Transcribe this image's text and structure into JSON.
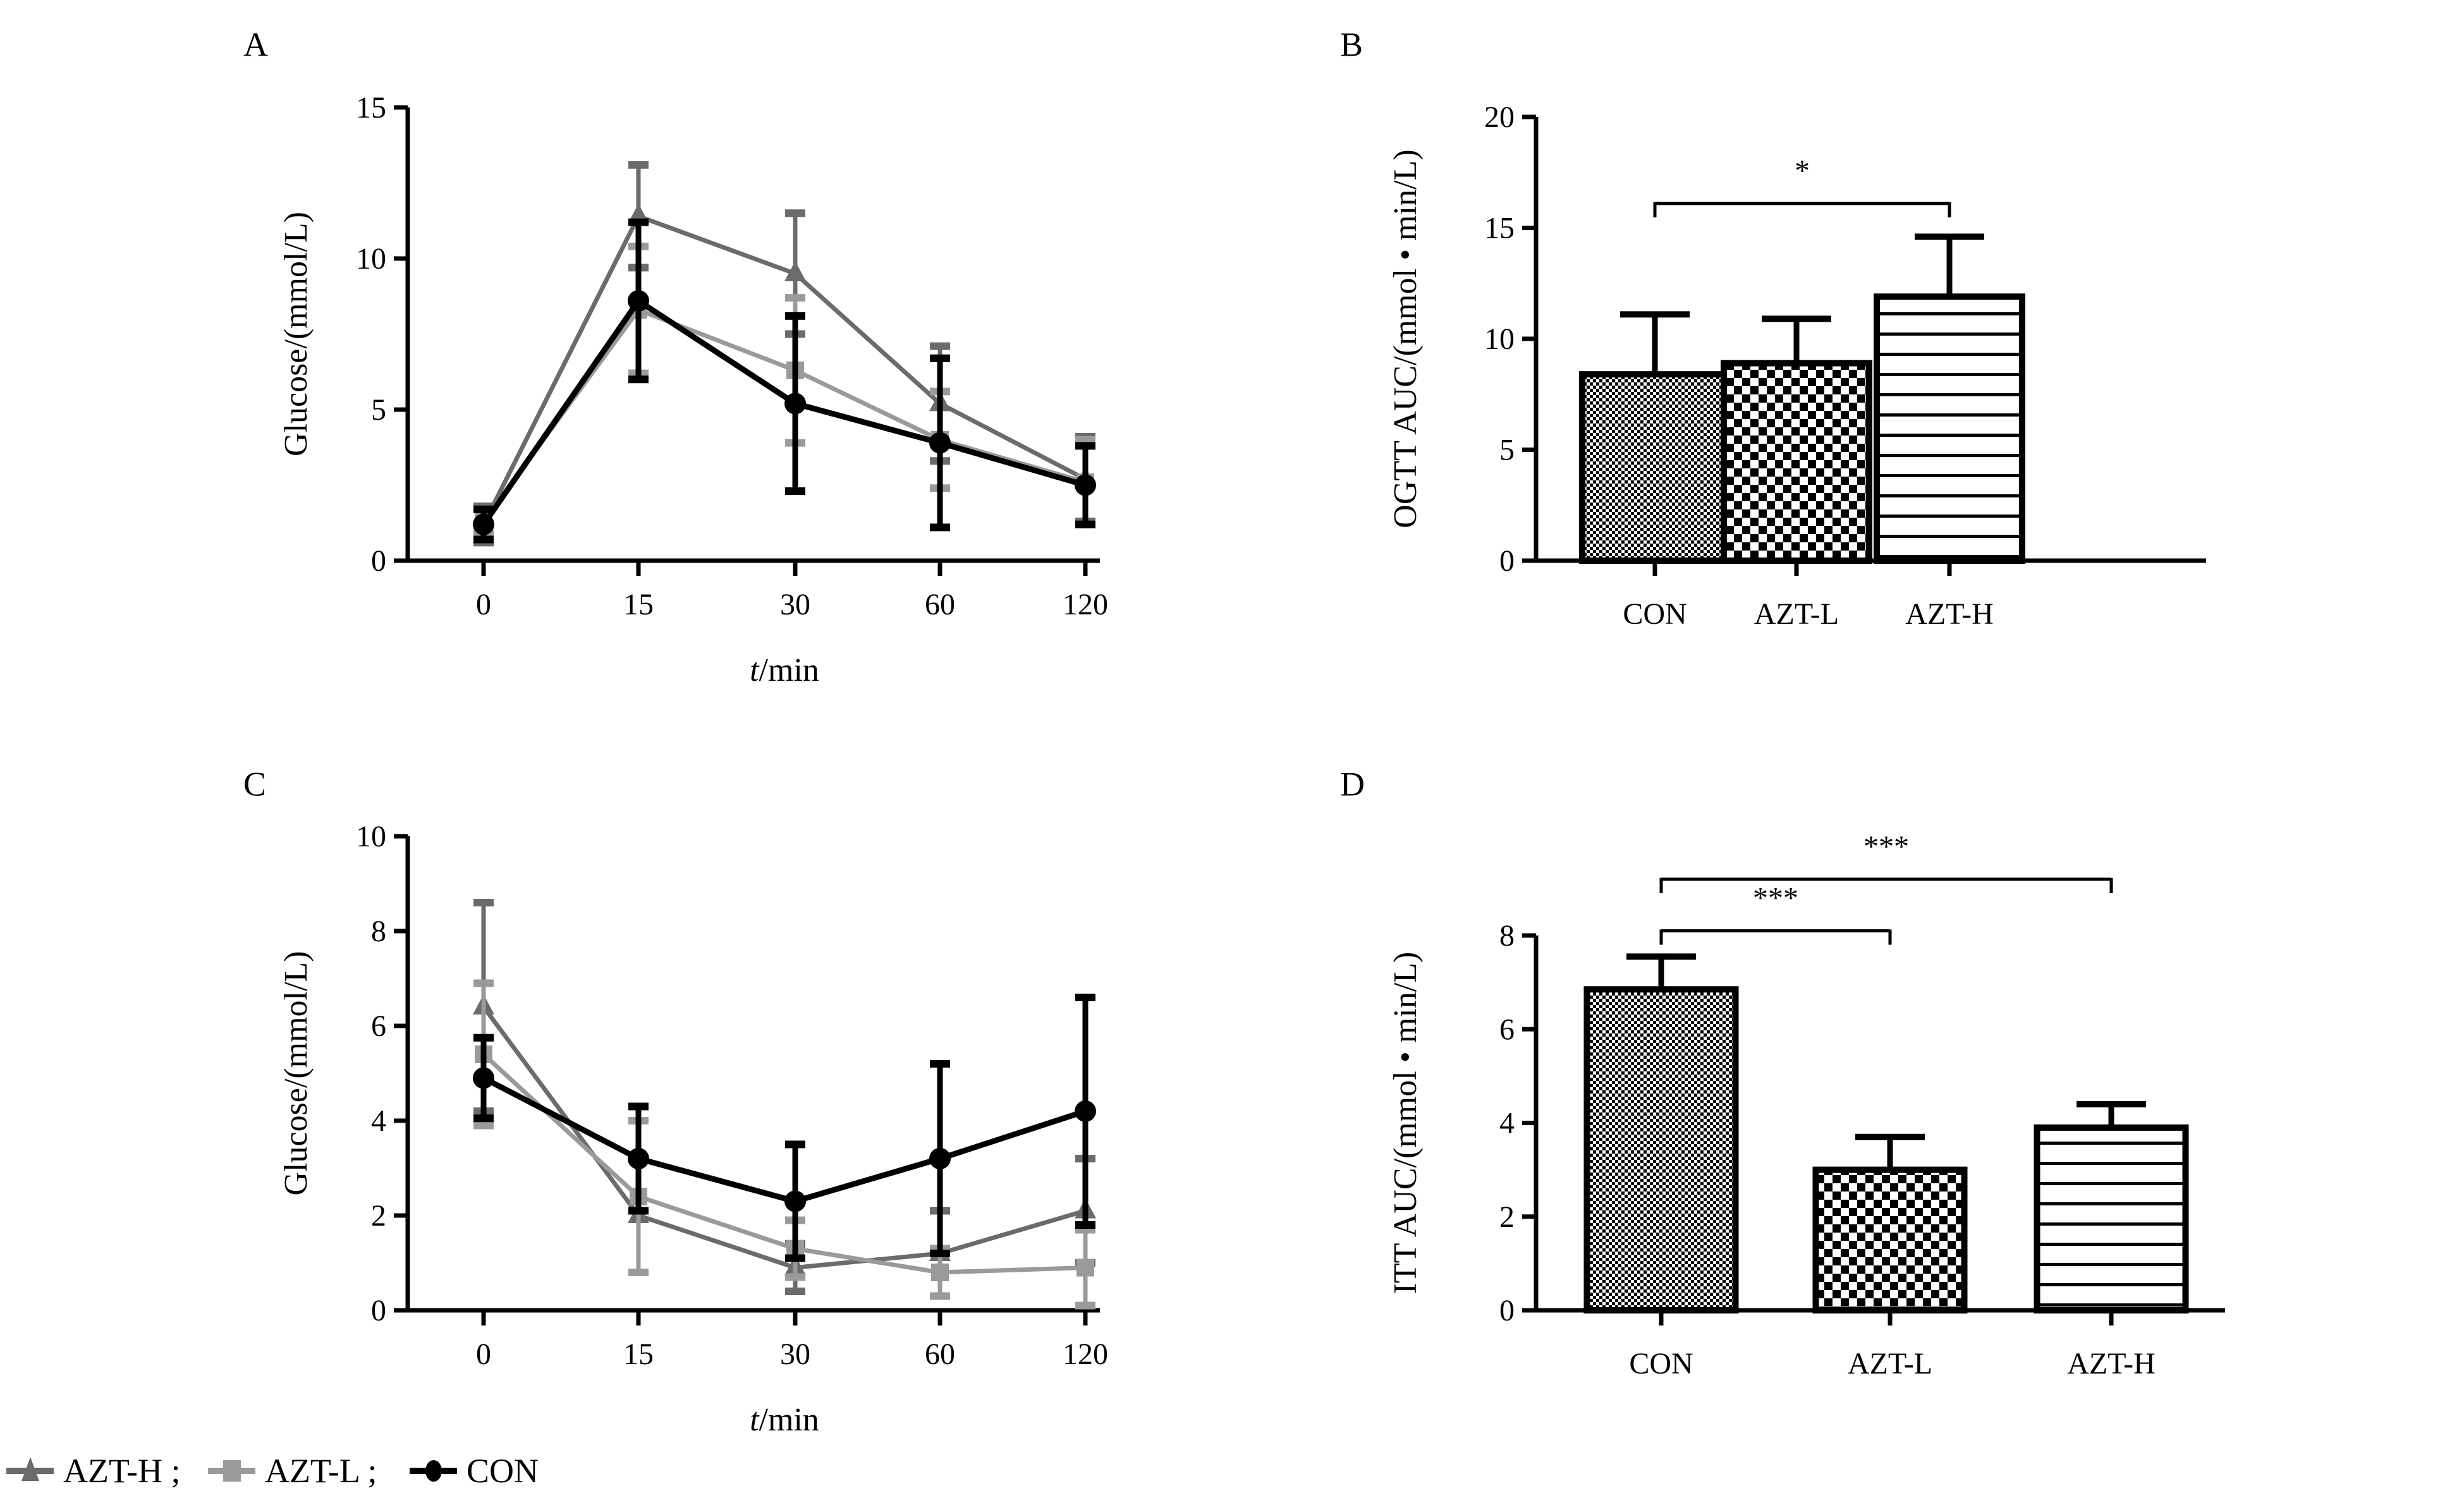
{
  "legend": {
    "items": [
      {
        "label": "AZT-H ;",
        "marker": "triangle",
        "color": "#6b6b6b"
      },
      {
        "label": "AZT-L ;",
        "marker": "square",
        "color": "#9a9a9a"
      },
      {
        "label": "CON",
        "marker": "circle",
        "color": "#000000"
      }
    ]
  },
  "chart_data": [
    {
      "panel": "A",
      "type": "line",
      "title": "",
      "xlabel_italic": "t",
      "xlabel_rest": "/min",
      "ylabel": "Glucose/(mmol/L)",
      "categories": [
        "0",
        "15",
        "30",
        "60",
        "120"
      ],
      "ylim": [
        0,
        15
      ],
      "yticks": [
        0,
        5,
        10,
        15
      ],
      "grid": false,
      "series": [
        {
          "name": "AZT-H",
          "marker": "triangle",
          "color": "#6b6b6b",
          "values": [
            1.2,
            11.4,
            9.5,
            5.2,
            2.7
          ],
          "errors": [
            0.6,
            1.7,
            2.0,
            1.9,
            1.4
          ]
        },
        {
          "name": "AZT-L",
          "marker": "square",
          "color": "#9a9a9a",
          "values": [
            1.3,
            8.3,
            6.3,
            4.0,
            2.6
          ],
          "errors": [
            0.4,
            2.1,
            2.4,
            1.6,
            1.4
          ]
        },
        {
          "name": "CON",
          "marker": "circle",
          "color": "#000000",
          "values": [
            1.2,
            8.6,
            5.2,
            3.9,
            2.5
          ],
          "errors": [
            0.5,
            2.6,
            2.9,
            2.8,
            1.3
          ]
        }
      ]
    },
    {
      "panel": "B",
      "type": "bar",
      "title": "",
      "xlabel": "",
      "ylabel": "OGTT AUC/(mmol • min/L)",
      "categories": [
        "CON",
        "AZT-L",
        "AZT-H"
      ],
      "values": [
        8.4,
        8.9,
        11.9
      ],
      "errors": [
        2.7,
        2.0,
        2.7
      ],
      "patterns": [
        "fine-check",
        "coarse-check",
        "horizontal-lines"
      ],
      "ylim": [
        0,
        20
      ],
      "yticks": [
        0,
        5,
        10,
        15,
        20
      ],
      "grid": false,
      "significance": [
        {
          "from": 0,
          "to": 2,
          "label": "*",
          "y": 16.1
        }
      ]
    },
    {
      "panel": "C",
      "type": "line",
      "title": "",
      "xlabel_italic": "t",
      "xlabel_rest": "/min",
      "ylabel": "Glucose/(mmol/L)",
      "categories": [
        "0",
        "15",
        "30",
        "60",
        "120"
      ],
      "ylim": [
        0,
        10
      ],
      "yticks": [
        0,
        2,
        4,
        6,
        8,
        10
      ],
      "grid": false,
      "series": [
        {
          "name": "AZT-H",
          "marker": "triangle",
          "color": "#6b6b6b",
          "values": [
            6.4,
            2.0,
            0.9,
            1.2,
            2.1
          ],
          "errors": [
            2.2,
            1.2,
            0.5,
            0.9,
            1.1
          ]
        },
        {
          "name": "AZT-L",
          "marker": "square",
          "color": "#9a9a9a",
          "values": [
            5.4,
            2.4,
            1.3,
            0.8,
            0.9
          ],
          "errors": [
            1.5,
            1.6,
            0.6,
            0.5,
            0.8
          ]
        },
        {
          "name": "CON",
          "marker": "circle",
          "color": "#000000",
          "values": [
            4.9,
            3.2,
            2.3,
            3.2,
            4.2
          ],
          "errors": [
            0.85,
            1.1,
            1.2,
            2.0,
            2.4
          ]
        }
      ]
    },
    {
      "panel": "D",
      "type": "bar",
      "title": "",
      "xlabel": "",
      "ylabel": "ITT AUC/(mmol • min/L)",
      "categories": [
        "CON",
        "AZT-L",
        "AZT-H"
      ],
      "values": [
        6.85,
        3.0,
        3.9
      ],
      "errors": [
        0.7,
        0.7,
        0.5
      ],
      "patterns": [
        "fine-check",
        "coarse-check",
        "horizontal-lines"
      ],
      "ylim": [
        0,
        8
      ],
      "yticks": [
        0,
        2,
        4,
        6,
        8
      ],
      "grid": false,
      "significance": [
        {
          "from": 0,
          "to": 1,
          "label": "***",
          "y": 8.1
        },
        {
          "from": 0,
          "to": 2,
          "label": "***",
          "y": 9.2
        }
      ]
    }
  ]
}
